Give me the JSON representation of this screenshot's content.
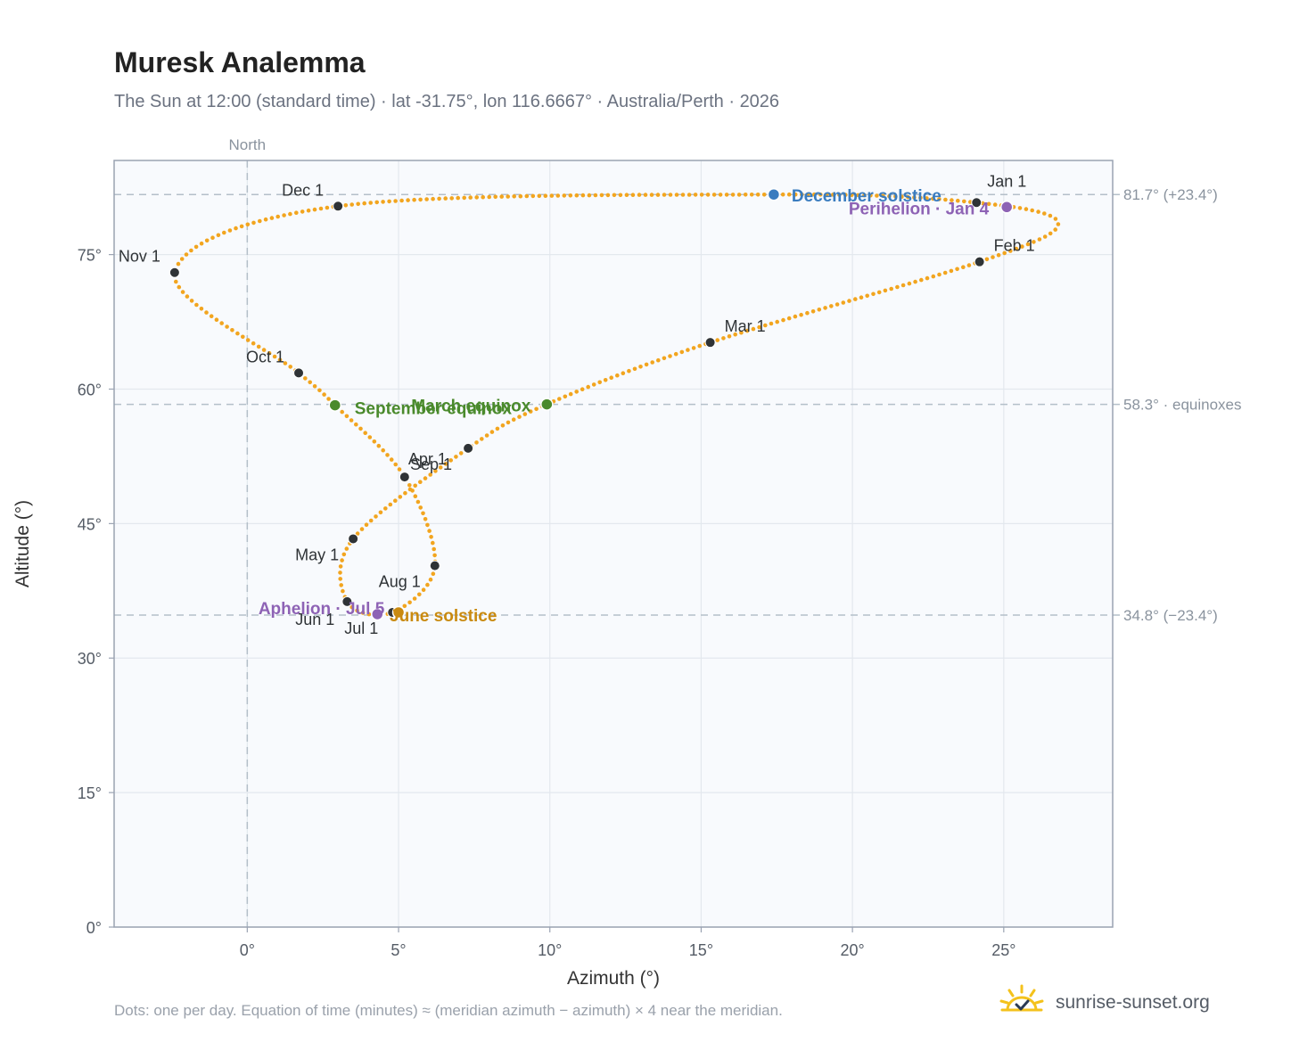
{
  "page": {
    "title": "Muresk Analemma",
    "subtitle": "The Sun at 12:00 (standard time) · lat -31.75°, lon 116.6667° · Australia/Perth · 2026",
    "footnote": "Dots: one per day. Equation of time (minutes) ≈ (meridian azimuth − azimuth) × 4 near the meridian.",
    "brand": "sunrise-sunset.org"
  },
  "icons": {
    "brand_logo": "sun-check-icon"
  },
  "colors": {
    "path": "#f2a51f",
    "month_marker": "#2f3336",
    "equinox": "#4a8a2c",
    "june_solstice": "#c98a10",
    "december_solstice": "#3a7cbf",
    "apsides": "#8e63b5",
    "plot_bg": "#f8fafd",
    "grid": "#e3e8ee",
    "axis": "#9aa3b2",
    "ref_line": "#b4bfc9"
  },
  "chart_data": {
    "type": "scatter",
    "xlabel": "Azimuth (°)",
    "ylabel": "Altitude (°)",
    "xlim": [
      -4.4,
      28.6
    ],
    "ylim": [
      0,
      85.5
    ],
    "xticks": [
      0,
      5,
      10,
      15,
      20,
      25
    ],
    "xtick_labels": [
      "0°",
      "5°",
      "10°",
      "15°",
      "20°",
      "25°"
    ],
    "yticks": [
      0,
      15,
      30,
      45,
      60,
      75
    ],
    "ytick_labels": [
      "0°",
      "15°",
      "30°",
      "45°",
      "60°",
      "75°"
    ],
    "grid": true,
    "meridian": {
      "x": 0,
      "label": "North"
    },
    "reference_lines": [
      {
        "y": 81.7,
        "label": "81.7° (+23.4°)"
      },
      {
        "y": 58.3,
        "label": "58.3° · equinoxes"
      },
      {
        "y": 34.8,
        "label": "34.8° (−23.4°)"
      }
    ],
    "path_keypoints": [
      {
        "x": 24.1,
        "y": 80.8
      },
      {
        "x": 26.8,
        "y": 78.5
      },
      {
        "x": 24.2,
        "y": 74.2
      },
      {
        "x": 15.3,
        "y": 65.2
      },
      {
        "x": 9.9,
        "y": 58.3
      },
      {
        "x": 7.3,
        "y": 53.4
      },
      {
        "x": 3.5,
        "y": 43.3
      },
      {
        "x": 3.3,
        "y": 36.3
      },
      {
        "x": 4.8,
        "y": 35.1
      },
      {
        "x": 6.2,
        "y": 40.3
      },
      {
        "x": 5.2,
        "y": 50.2
      },
      {
        "x": 2.9,
        "y": 58.2
      },
      {
        "x": 1.7,
        "y": 61.8
      },
      {
        "x": -2.4,
        "y": 73.0
      },
      {
        "x": 3.0,
        "y": 80.4
      },
      {
        "x": 17.4,
        "y": 81.7
      },
      {
        "x": 24.1,
        "y": 80.8
      }
    ],
    "month_markers": [
      {
        "label": "Jan 1",
        "x": 24.1,
        "y": 80.8
      },
      {
        "label": "Feb 1",
        "x": 24.2,
        "y": 74.2
      },
      {
        "label": "Mar 1",
        "x": 15.3,
        "y": 65.2
      },
      {
        "label": "Apr 1",
        "x": 5.2,
        "y": 50.2
      },
      {
        "label": "May 1",
        "x": 3.5,
        "y": 43.3
      },
      {
        "label": "Jun 1",
        "x": 3.3,
        "y": 36.3
      },
      {
        "label": "Jul 1",
        "x": 4.8,
        "y": 35.1
      },
      {
        "label": "Aug 1",
        "x": 6.2,
        "y": 40.3
      },
      {
        "label": "Sep 1",
        "x": 7.3,
        "y": 53.4
      },
      {
        "label": "Oct 1",
        "x": 1.7,
        "y": 61.8
      },
      {
        "label": "Nov 1",
        "x": -2.4,
        "y": 73.0
      },
      {
        "label": "Dec 1",
        "x": 3.0,
        "y": 80.4
      }
    ],
    "events": [
      {
        "label": "March equinox",
        "x": 9.9,
        "y": 58.3,
        "kind": "equinox"
      },
      {
        "label": "September equinox",
        "x": 2.9,
        "y": 58.2,
        "kind": "equinox"
      },
      {
        "label": "June solstice",
        "x": 5.0,
        "y": 35.1,
        "kind": "june_solstice"
      },
      {
        "label": "December solstice",
        "x": 17.4,
        "y": 81.7,
        "kind": "december_solstice"
      },
      {
        "label": "Perihelion · Jan 4",
        "x": 25.1,
        "y": 80.3,
        "kind": "apsides"
      },
      {
        "label": "Aphelion · Jul 5",
        "x": 4.3,
        "y": 34.9,
        "kind": "apsides"
      }
    ]
  }
}
